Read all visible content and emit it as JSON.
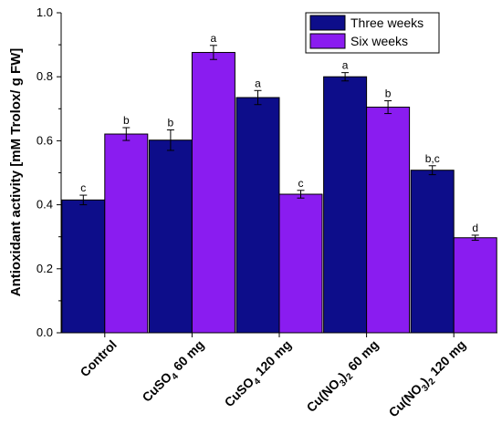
{
  "chart_data": {
    "type": "bar",
    "categories": [
      {
        "main": "Control",
        "sub": "",
        "tail": ""
      },
      {
        "main": "CuSO",
        "sub": "4",
        "tail": " 60 mg"
      },
      {
        "main": "CuSO",
        "sub": "4",
        "tail": " 120 mg"
      },
      {
        "main": "Cu(NO",
        "sub": "3",
        "tail": ")",
        "sub2": "2",
        "tail2": " 60 mg"
      },
      {
        "main": "Cu(NO",
        "sub": "3",
        "tail": ")",
        "sub2": "2",
        "tail2": " 120 mg"
      }
    ],
    "series": [
      {
        "name": "Three weeks",
        "color": "#0d0d8a",
        "values": [
          0.415,
          0.602,
          0.735,
          0.8,
          0.508
        ],
        "errors": [
          0.015,
          0.032,
          0.022,
          0.013,
          0.014
        ],
        "labels": [
          "c",
          "b",
          "a",
          "a",
          "b,c"
        ]
      },
      {
        "name": "Six weeks",
        "color": "#8a1cf0",
        "values": [
          0.621,
          0.876,
          0.433,
          0.705,
          0.297
        ],
        "errors": [
          0.02,
          0.022,
          0.012,
          0.02,
          0.008
        ],
        "labels": [
          "b",
          "a",
          "c",
          "b",
          "d"
        ]
      }
    ],
    "ylabel": "Antioxidant activity [mM Trolox/ g FW]",
    "ylim": [
      0.0,
      1.0
    ],
    "yticks": [
      "0.0",
      "0.2",
      "0.4",
      "0.6",
      "0.8",
      "1.0"
    ],
    "legend_position": "top-right",
    "grid": false
  }
}
